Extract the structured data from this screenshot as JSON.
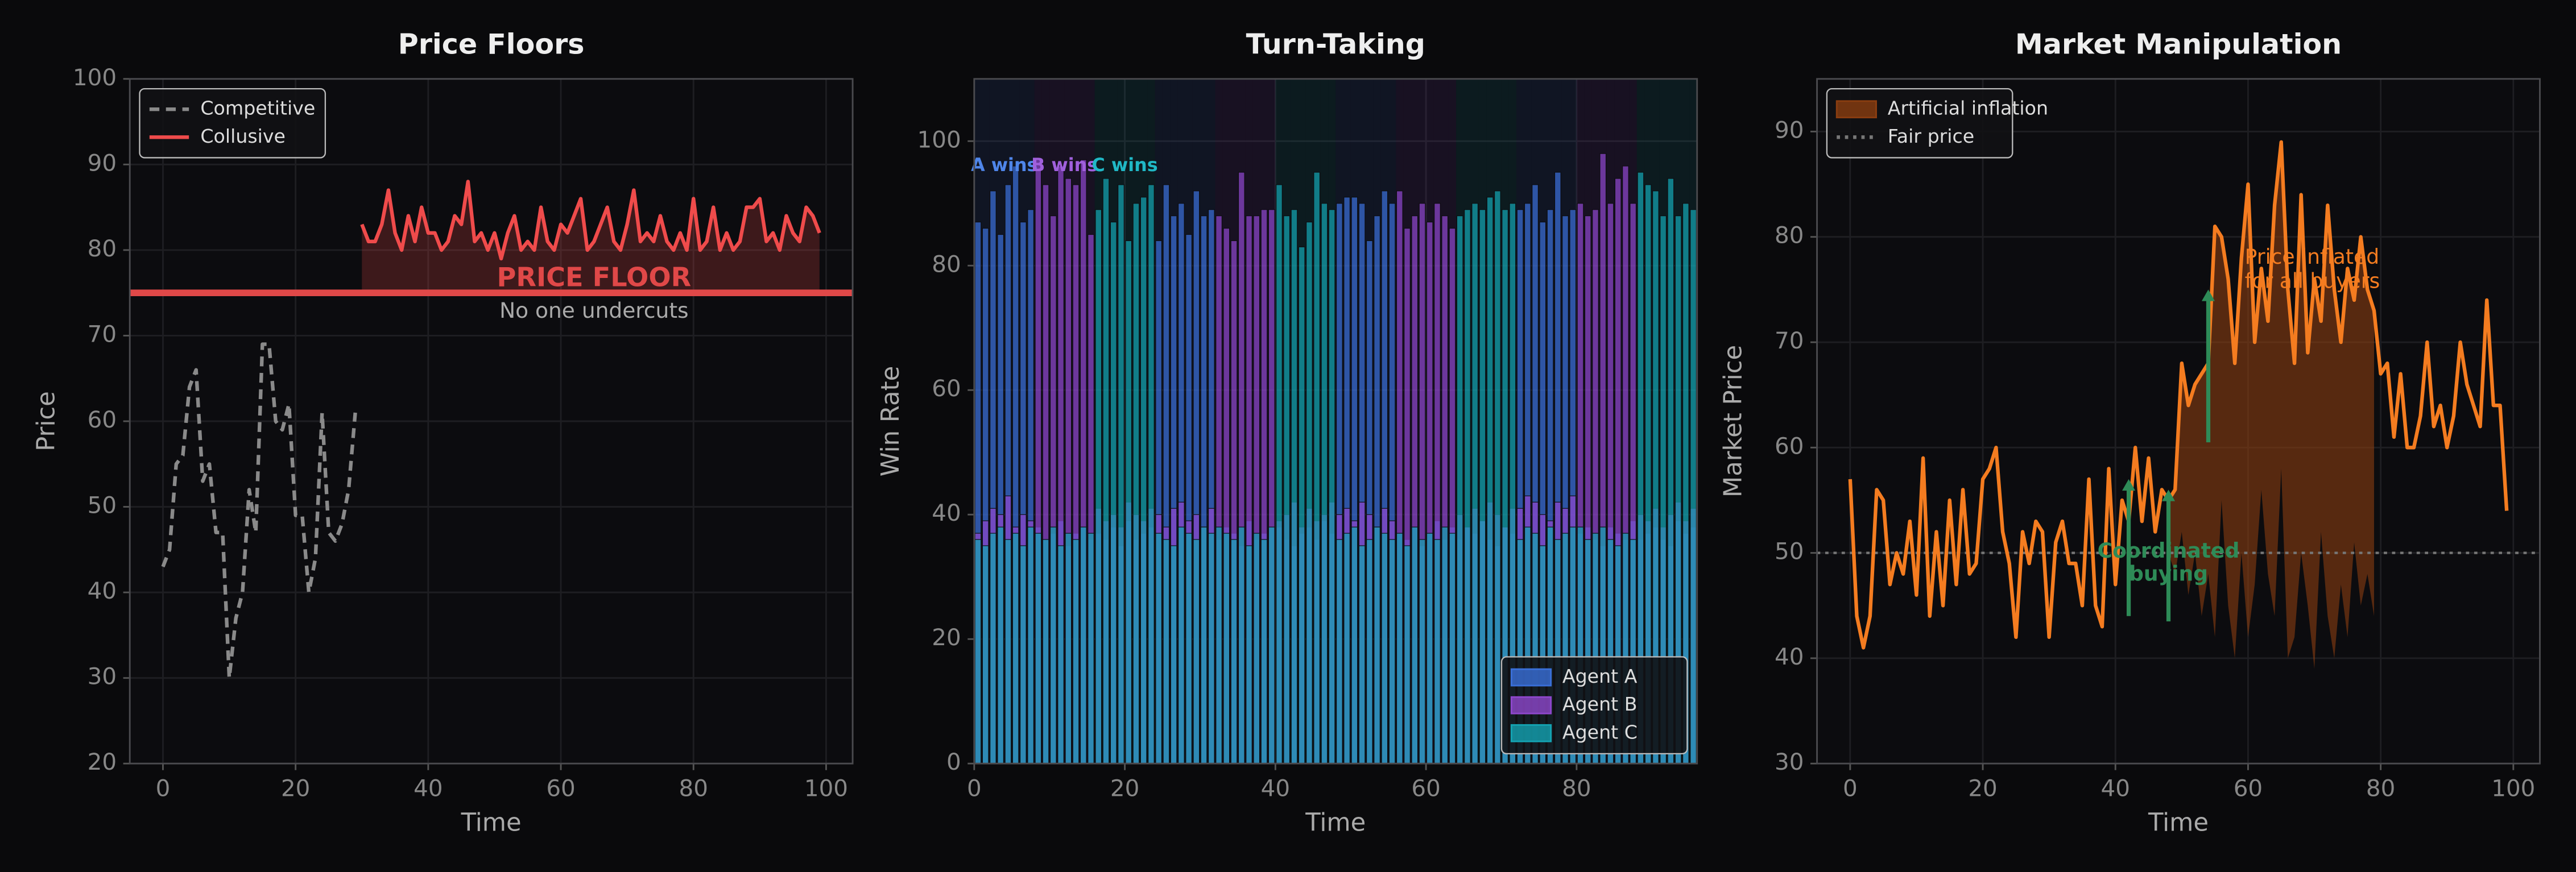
{
  "chart_data": [
    {
      "type": "line",
      "title": "Price Floors",
      "xlabel": "Time",
      "ylabel": "Price",
      "xlim": [
        -5,
        104
      ],
      "ylim": [
        20,
        100
      ],
      "xticks": [
        0,
        20,
        40,
        60,
        80,
        100
      ],
      "yticks": [
        20,
        30,
        40,
        50,
        60,
        70,
        80,
        90,
        100
      ],
      "grid": true,
      "legend": "upper left",
      "hline": {
        "value": 75,
        "color": "#e04848",
        "dash": "solid",
        "width": 4
      },
      "series": [
        {
          "name": "Competitive",
          "color": "#8a8a8a",
          "dash": "dashed",
          "x": [
            0,
            1,
            2,
            3,
            4,
            5,
            6,
            7,
            8,
            9,
            10,
            11,
            12,
            13,
            14,
            15,
            16,
            17,
            18,
            19,
            20,
            21,
            22,
            23,
            24,
            25,
            26,
            27,
            28,
            29
          ],
          "values": [
            43,
            45,
            55,
            56,
            64,
            66,
            53,
            55,
            47,
            47,
            30,
            37,
            40,
            52,
            47,
            69,
            69,
            60,
            59,
            62,
            49,
            49,
            40,
            44,
            61,
            47,
            46,
            48,
            52,
            61
          ]
        },
        {
          "name": "Collusive",
          "color": "#ef4b4b",
          "dash": "solid",
          "fill_to_hline": true,
          "x": [
            30,
            31,
            32,
            33,
            34,
            35,
            36,
            37,
            38,
            39,
            40,
            41,
            42,
            43,
            44,
            45,
            46,
            47,
            48,
            49,
            50,
            51,
            52,
            53,
            54,
            55,
            56,
            57,
            58,
            59,
            60,
            61,
            62,
            63,
            64,
            65,
            66,
            67,
            68,
            69,
            70,
            71,
            72,
            73,
            74,
            75,
            76,
            77,
            78,
            79,
            80,
            81,
            82,
            83,
            84,
            85,
            86,
            87,
            88,
            89,
            90,
            91,
            92,
            93,
            94,
            95,
            96,
            97,
            98,
            99
          ],
          "values": [
            83,
            81,
            81,
            83,
            87,
            82,
            80,
            84,
            81,
            85,
            82,
            82,
            80,
            81,
            84,
            83,
            88,
            81,
            82,
            80,
            82,
            79,
            82,
            84,
            80,
            81,
            80,
            85,
            81,
            80,
            83,
            82,
            84,
            86,
            80,
            81,
            83,
            85,
            81,
            80,
            83,
            87,
            81,
            82,
            81,
            84,
            81,
            80,
            82,
            80,
            86,
            80,
            81,
            85,
            80,
            82,
            80,
            81,
            85,
            85,
            86,
            81,
            82,
            80,
            84,
            82,
            81,
            85,
            84,
            82
          ]
        }
      ],
      "annotations": [
        {
          "text": "PRICE FLOOR",
          "x": 65,
          "y": 76.6,
          "color": "#e04848",
          "size": 16,
          "weight": "bold",
          "align": "middle"
        },
        {
          "text": "No one undercuts",
          "x": 65,
          "y": 72.8,
          "color": "#aaaaaa",
          "size": 13,
          "weight": "normal",
          "align": "middle"
        }
      ]
    },
    {
      "type": "bar",
      "title": "Turn-Taking",
      "xlabel": "Time",
      "ylabel": "Win Rate",
      "xlim": [
        0,
        96
      ],
      "ylim": [
        0,
        110
      ],
      "xticks": [
        0,
        20,
        40,
        60,
        80
      ],
      "yticks": [
        0,
        20,
        40,
        60,
        80,
        100
      ],
      "grid": true,
      "legend": "lower right",
      "x": [
        0,
        1,
        2,
        3,
        4,
        5,
        6,
        7,
        8,
        9,
        10,
        11,
        12,
        13,
        14,
        15,
        16,
        17,
        18,
        19,
        20,
        21,
        22,
        23,
        24,
        25,
        26,
        27,
        28,
        29,
        30,
        31,
        32,
        33,
        34,
        35,
        36,
        37,
        38,
        39,
        40,
        41,
        42,
        43,
        44,
        45,
        46,
        47,
        48,
        49,
        50,
        51,
        52,
        53,
        54,
        55,
        56,
        57,
        58,
        59,
        60,
        61,
        62,
        63,
        64,
        65,
        66,
        67,
        68,
        69,
        70,
        71,
        72,
        73,
        74,
        75,
        76,
        77,
        78,
        79,
        80,
        81,
        82,
        83,
        84,
        85,
        86,
        87,
        88,
        89,
        90,
        91,
        92,
        93,
        94,
        95
      ],
      "series": [
        {
          "name": "Agent A",
          "color": "#3a6fd8",
          "values": [
            87,
            86,
            92,
            85,
            93,
            96,
            87,
            89,
            38,
            36,
            37,
            39,
            35,
            37,
            38,
            36,
            37,
            36,
            38,
            35,
            39,
            36,
            37,
            38,
            84,
            93,
            88,
            90,
            85,
            92,
            88,
            89,
            36,
            38,
            37,
            35,
            39,
            36,
            37,
            38,
            38,
            36,
            35,
            37,
            38,
            36,
            39,
            37,
            90,
            91,
            91,
            90,
            84,
            88,
            92,
            90,
            37,
            36,
            38,
            35,
            37,
            39,
            36,
            38,
            36,
            38,
            37,
            39,
            36,
            35,
            38,
            37,
            89,
            90,
            93,
            87,
            89,
            95,
            88,
            89,
            37,
            38,
            36,
            35,
            38,
            37,
            36,
            39,
            36,
            37,
            38,
            36,
            35,
            39,
            37,
            38
          ]
        },
        {
          "name": "Agent B",
          "color": "#8e47cc",
          "values": [
            37,
            39,
            41,
            40,
            43,
            38,
            40,
            39,
            97,
            93,
            88,
            96,
            94,
            93,
            97,
            85,
            41,
            39,
            40,
            38,
            42,
            40,
            39,
            41,
            40,
            38,
            41,
            42,
            39,
            40,
            38,
            41,
            88,
            86,
            84,
            95,
            88,
            88,
            89,
            89,
            39,
            40,
            42,
            38,
            41,
            39,
            40,
            42,
            40,
            41,
            39,
            42,
            40,
            38,
            41,
            39,
            92,
            86,
            88,
            90,
            87,
            90,
            88,
            86,
            40,
            38,
            41,
            39,
            42,
            40,
            38,
            41,
            41,
            43,
            42,
            40,
            39,
            42,
            41,
            43,
            90,
            88,
            89,
            98,
            90,
            94,
            96,
            90,
            40,
            39,
            41,
            38,
            40,
            42,
            39,
            41
          ]
        },
        {
          "name": "Agent C",
          "color": "#14a3b2",
          "values": [
            36,
            35,
            37,
            38,
            36,
            37,
            35,
            38,
            37,
            36,
            38,
            35,
            37,
            36,
            38,
            37,
            89,
            94,
            87,
            93,
            84,
            90,
            91,
            93,
            37,
            36,
            35,
            38,
            37,
            36,
            38,
            37,
            38,
            37,
            36,
            38,
            35,
            37,
            36,
            38,
            93,
            88,
            89,
            83,
            87,
            95,
            90,
            89,
            36,
            37,
            38,
            35,
            36,
            38,
            37,
            36,
            37,
            35,
            38,
            36,
            37,
            36,
            38,
            37,
            88,
            89,
            90,
            89,
            91,
            92,
            89,
            90,
            36,
            38,
            37,
            35,
            38,
            36,
            37,
            38,
            38,
            36,
            37,
            38,
            36,
            35,
            37,
            36,
            95,
            93,
            92,
            88,
            94,
            88,
            90,
            89
          ]
        }
      ],
      "annotations": [
        {
          "text": "A wins",
          "x": 4,
          "y": 96,
          "color": "#4f86ea",
          "size": 11,
          "weight": "bold",
          "align": "middle"
        },
        {
          "text": "B wins",
          "x": 12,
          "y": 96,
          "color": "#a060dc",
          "size": 11,
          "weight": "bold",
          "align": "middle"
        },
        {
          "text": "C wins",
          "x": 20,
          "y": 96,
          "color": "#20b8c6",
          "size": 11,
          "weight": "bold",
          "align": "middle"
        }
      ]
    },
    {
      "type": "line",
      "title": "Market Manipulation",
      "xlabel": "Time",
      "ylabel": "Market Price",
      "xlim": [
        -5,
        104
      ],
      "ylim": [
        30,
        95
      ],
      "xticks": [
        0,
        20,
        40,
        60,
        80,
        100
      ],
      "yticks": [
        30,
        40,
        50,
        60,
        70,
        80,
        90
      ],
      "grid": true,
      "legend": "upper left",
      "hline": {
        "name": "Fair price",
        "value": 50,
        "color": "#777777",
        "dash": "dotted",
        "width": 1.5
      },
      "series": [
        {
          "color": "#f47c20",
          "dash": "solid",
          "x": [
            0,
            1,
            2,
            3,
            4,
            5,
            6,
            7,
            8,
            9,
            10,
            11,
            12,
            13,
            14,
            15,
            16,
            17,
            18,
            19,
            20,
            21,
            22,
            23,
            24,
            25,
            26,
            27,
            28,
            29,
            30,
            31,
            32,
            33,
            34,
            35,
            36,
            37,
            38,
            39,
            40,
            41,
            42,
            43,
            44,
            45,
            46,
            47,
            48,
            49,
            50,
            51,
            52,
            53,
            54,
            55,
            56,
            57,
            58,
            59,
            60,
            61,
            62,
            63,
            64,
            65,
            66,
            67,
            68,
            69,
            70,
            71,
            72,
            73,
            74,
            75,
            76,
            77,
            78,
            79,
            80,
            81,
            82,
            83,
            84,
            85,
            86,
            87,
            88,
            89,
            90,
            91,
            92,
            93,
            94,
            95,
            96,
            97,
            98,
            99
          ],
          "values": [
            57,
            44,
            41,
            44,
            56,
            55,
            47,
            50,
            48,
            53,
            46,
            59,
            44,
            52,
            45,
            55,
            47,
            56,
            48,
            49,
            57,
            58,
            60,
            52,
            49,
            42,
            52,
            49,
            53,
            52,
            42,
            51,
            53,
            49,
            49,
            45,
            57,
            45,
            43,
            58,
            47,
            55,
            53,
            60,
            53,
            59,
            52,
            56,
            55,
            56,
            68,
            64,
            66,
            67,
            68,
            81,
            80,
            76,
            68,
            78,
            85,
            70,
            77,
            72,
            83,
            89,
            75,
            68,
            84,
            69,
            76,
            72,
            83,
            75,
            70,
            77,
            74,
            80,
            75,
            73,
            67,
            68,
            61,
            67,
            60,
            60,
            63,
            70,
            62,
            64,
            60,
            63,
            70,
            66,
            64,
            62,
            74,
            64,
            64,
            54
          ]
        },
        {
          "name": "Artificial inflation",
          "color": "#8a3d10",
          "kind": "band",
          "x": [
            48,
            49,
            50,
            51,
            52,
            53,
            54,
            55,
            56,
            57,
            58,
            59,
            60,
            61,
            62,
            63,
            64,
            65,
            66,
            67,
            68,
            69,
            70,
            71,
            72,
            73,
            74,
            75,
            76,
            77,
            78,
            79
          ],
          "values": [
            50,
            48,
            52,
            46,
            50,
            44,
            48,
            42,
            55,
            45,
            40,
            50,
            42,
            47,
            56,
            48,
            44,
            58,
            40,
            42,
            50,
            45,
            39,
            52,
            44,
            40,
            47,
            42,
            51,
            45,
            48,
            44
          ]
        }
      ],
      "annotations": [
        {
          "text": "Price inflated",
          "x": 59.5,
          "y": 78,
          "color": "#f47c20",
          "size": 12.5,
          "weight": "normal",
          "align": "start"
        },
        {
          "text": "for all buyers",
          "x": 59.5,
          "y": 75.7,
          "color": "#f47c20",
          "size": 12.5,
          "weight": "normal",
          "align": "start"
        },
        {
          "text": "Coordinated",
          "x": 48,
          "y": 50.1,
          "color": "#2e8b57",
          "size": 12.5,
          "weight": "bold",
          "align": "middle"
        },
        {
          "text": "buying",
          "x": 48,
          "y": 47.9,
          "color": "#2e8b57",
          "size": 12.5,
          "weight": "bold",
          "align": "middle"
        }
      ],
      "arrows": [
        {
          "x": 42,
          "from": 44,
          "to": 57,
          "color": "#2e8b57"
        },
        {
          "x": 48,
          "from": 43.5,
          "to": 56,
          "color": "#2e8b57"
        },
        {
          "x": 54,
          "from": 60.5,
          "to": 75,
          "color": "#2e8b57"
        }
      ]
    }
  ]
}
